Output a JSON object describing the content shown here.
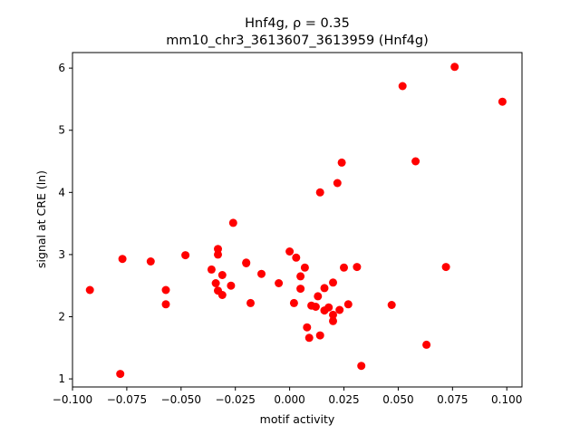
{
  "chart_data": {
    "type": "scatter",
    "title_line1": "Hnf4g, ρ = 0.35",
    "title_line2": "mm10_chr3_3613607_3613959 (Hnf4g)",
    "xlabel": "motif activity",
    "ylabel": "signal at CRE (ln)",
    "xlim": [
      -0.1,
      0.107
    ],
    "ylim": [
      0.87,
      6.25
    ],
    "xticks": [
      "−0.100",
      "−0.075",
      "−0.050",
      "−0.025",
      "0.000",
      "0.025",
      "0.050",
      "0.075",
      "0.100"
    ],
    "xtick_values": [
      -0.1,
      -0.075,
      -0.05,
      -0.025,
      0.0,
      0.025,
      0.05,
      0.075,
      0.1
    ],
    "yticks": [
      "1",
      "2",
      "3",
      "4",
      "5",
      "6"
    ],
    "ytick_values": [
      1,
      2,
      3,
      4,
      5,
      6
    ],
    "grid": false,
    "marker_color": "#ff0000",
    "points": [
      {
        "x": -0.092,
        "y": 2.43
      },
      {
        "x": -0.078,
        "y": 1.08
      },
      {
        "x": -0.077,
        "y": 2.93
      },
      {
        "x": -0.064,
        "y": 2.89
      },
      {
        "x": -0.057,
        "y": 2.43
      },
      {
        "x": -0.057,
        "y": 2.2
      },
      {
        "x": -0.048,
        "y": 2.99
      },
      {
        "x": -0.036,
        "y": 2.76
      },
      {
        "x": -0.034,
        "y": 2.54
      },
      {
        "x": -0.033,
        "y": 2.42
      },
      {
        "x": -0.033,
        "y": 3.09
      },
      {
        "x": -0.033,
        "y": 3.0
      },
      {
        "x": -0.031,
        "y": 2.35
      },
      {
        "x": -0.031,
        "y": 2.67
      },
      {
        "x": -0.027,
        "y": 2.5
      },
      {
        "x": -0.026,
        "y": 3.51
      },
      {
        "x": -0.02,
        "y": 2.86
      },
      {
        "x": -0.02,
        "y": 2.87
      },
      {
        "x": -0.018,
        "y": 2.22
      },
      {
        "x": -0.013,
        "y": 2.69
      },
      {
        "x": -0.005,
        "y": 2.54
      },
      {
        "x": 0.0,
        "y": 3.05
      },
      {
        "x": 0.002,
        "y": 2.22
      },
      {
        "x": 0.003,
        "y": 2.95
      },
      {
        "x": 0.005,
        "y": 2.45
      },
      {
        "x": 0.005,
        "y": 2.65
      },
      {
        "x": 0.007,
        "y": 2.79
      },
      {
        "x": 0.008,
        "y": 1.83
      },
      {
        "x": 0.009,
        "y": 1.66
      },
      {
        "x": 0.01,
        "y": 2.18
      },
      {
        "x": 0.012,
        "y": 2.16
      },
      {
        "x": 0.013,
        "y": 2.33
      },
      {
        "x": 0.014,
        "y": 1.7
      },
      {
        "x": 0.014,
        "y": 4.0
      },
      {
        "x": 0.016,
        "y": 2.46
      },
      {
        "x": 0.016,
        "y": 2.1
      },
      {
        "x": 0.018,
        "y": 2.15
      },
      {
        "x": 0.02,
        "y": 2.55
      },
      {
        "x": 0.02,
        "y": 2.03
      },
      {
        "x": 0.02,
        "y": 1.93
      },
      {
        "x": 0.022,
        "y": 4.15
      },
      {
        "x": 0.023,
        "y": 2.11
      },
      {
        "x": 0.024,
        "y": 4.48
      },
      {
        "x": 0.025,
        "y": 2.79
      },
      {
        "x": 0.027,
        "y": 2.2
      },
      {
        "x": 0.031,
        "y": 2.8
      },
      {
        "x": 0.033,
        "y": 1.21
      },
      {
        "x": 0.047,
        "y": 2.19
      },
      {
        "x": 0.052,
        "y": 5.71
      },
      {
        "x": 0.058,
        "y": 4.5
      },
      {
        "x": 0.063,
        "y": 1.55
      },
      {
        "x": 0.072,
        "y": 2.8
      },
      {
        "x": 0.076,
        "y": 6.02
      },
      {
        "x": 0.098,
        "y": 5.46
      }
    ]
  }
}
